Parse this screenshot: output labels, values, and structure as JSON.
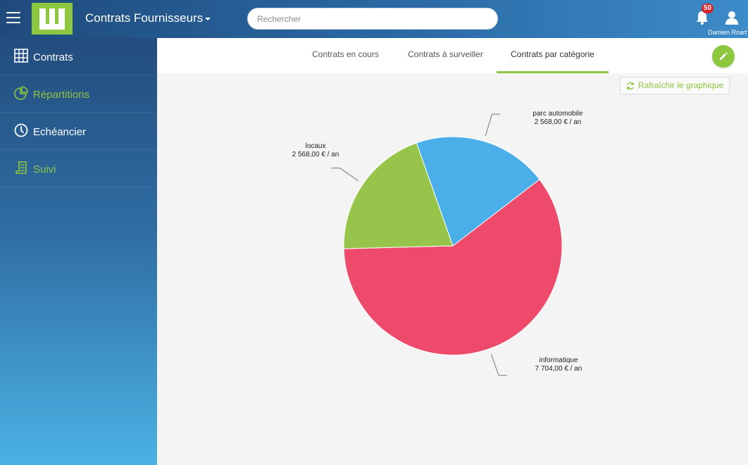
{
  "header": {
    "app_title": "Contrats Fournisseurs",
    "search_placeholder": "Rechercher",
    "notification_count": "50",
    "user_name": "Damien Roart"
  },
  "sidebar": {
    "items": [
      {
        "label": "Contrats",
        "icon": "grid-icon"
      },
      {
        "label": "Répartitions",
        "icon": "pie-chart-icon"
      },
      {
        "label": "Echéancier",
        "icon": "clock-icon"
      },
      {
        "label": "Suivi",
        "icon": "document-icon"
      }
    ]
  },
  "tabs": [
    {
      "label": "Contrats en cours"
    },
    {
      "label": "Contrats à surveiller"
    },
    {
      "label": "Contrats par catégorie",
      "active": true
    }
  ],
  "toolbar": {
    "refresh_label": "Rafraîchir le graphique"
  },
  "colors": {
    "accent": "#8dc63f",
    "slice_blue": "#4aaee8",
    "slice_red": "#ee4a6c",
    "slice_green": "#97c44a"
  },
  "chart_data": {
    "type": "pie",
    "categories": [
      "parc automobile",
      "informatique",
      "locaux"
    ],
    "values": [
      2568,
      7704,
      2568
    ],
    "value_labels": [
      "2 568,00 € / an",
      "7 704,00 € / an",
      "2 568,00 € / an"
    ],
    "title": ""
  }
}
